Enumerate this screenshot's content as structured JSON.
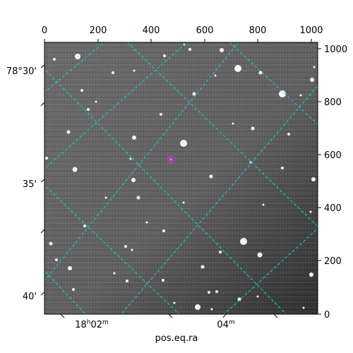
{
  "image": {
    "kind": "astronomical-field",
    "sky_tint": "#6e6e6e",
    "marker_color": "#cc33cc",
    "grid_color": "#22cccc"
  },
  "axes": {
    "xlabel": "pos.eq.ra",
    "pixel_x_ticks": [
      "0",
      "200",
      "400",
      "600",
      "800",
      "1000"
    ],
    "pixel_y_ticks": [
      "0",
      "200",
      "400",
      "600",
      "800",
      "1000"
    ],
    "dec_ticks": [
      "78°30'",
      "35'",
      "40'"
    ],
    "ra_ticks": [
      "18h02m",
      "04m"
    ]
  }
}
